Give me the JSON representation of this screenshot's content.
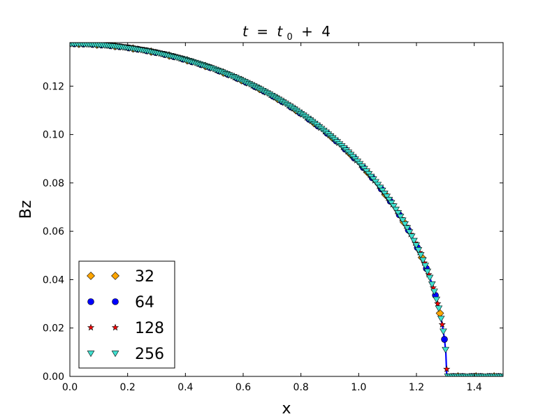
{
  "chart_data": {
    "type": "line",
    "title": "t = t₀ + 4",
    "title_parts": {
      "t": "t",
      "eq": "=",
      "t0": "t",
      "sub0": "0",
      "plus": "+",
      "four": "4"
    },
    "xlabel": "x",
    "ylabel": "Bz",
    "xlim": [
      0.0,
      1.5
    ],
    "ylim": [
      0.0,
      0.138
    ],
    "xticks": [
      0.0,
      0.2,
      0.4,
      0.6,
      0.8,
      1.0,
      1.2,
      1.4
    ],
    "xtick_labels": [
      "0.0",
      "0.2",
      "0.4",
      "0.6",
      "0.8",
      "1.0",
      "1.2",
      "1.4"
    ],
    "yticks": [
      0.0,
      0.02,
      0.04,
      0.06,
      0.08,
      0.1,
      0.12
    ],
    "ytick_labels": [
      "0.00",
      "0.02",
      "0.04",
      "0.06",
      "0.08",
      "0.10",
      "0.12"
    ],
    "grid": false,
    "legend_position": "lower-left",
    "reference_curve": {
      "B0": 0.1375,
      "x_edge": 1.305,
      "color": "#0000ff"
    },
    "series": [
      {
        "name": "32",
        "marker": "diamond",
        "color": "#ffa500",
        "N": 32
      },
      {
        "name": "64",
        "marker": "circle",
        "color": "#0000ff",
        "N": 64
      },
      {
        "name": "128",
        "marker": "star",
        "color": "#ff0000",
        "N": 128
      },
      {
        "name": "256",
        "marker": "triangle-down",
        "color": "#40e0d0",
        "N": 256
      }
    ]
  }
}
